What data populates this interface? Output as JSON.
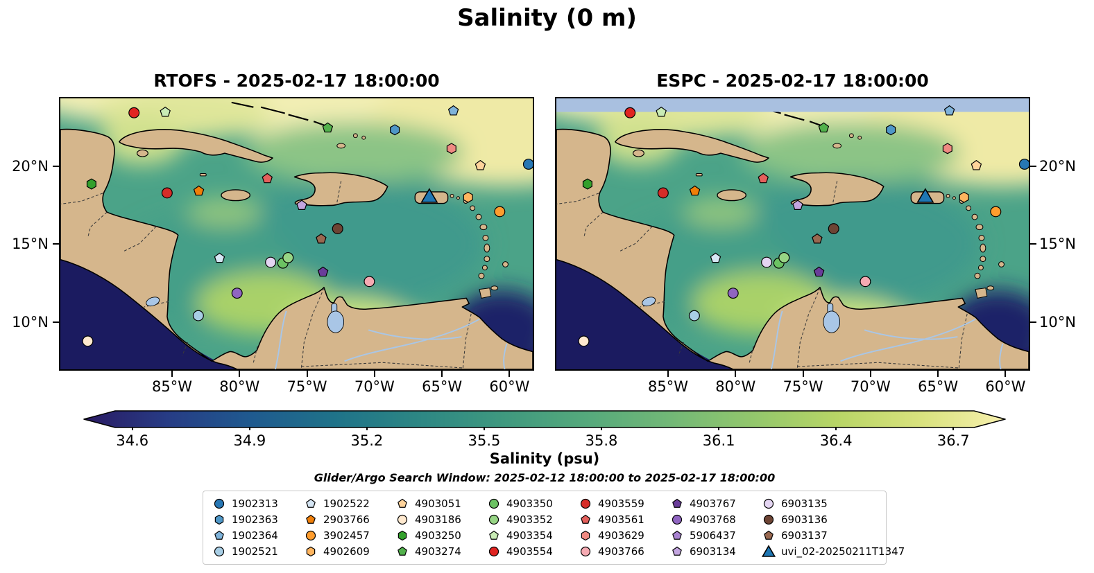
{
  "figure": {
    "title": "Salinity (0 m)",
    "search_window_text": "Glider/Argo Search Window: 2025-02-12 18:00:00 to 2025-02-17 18:00:00"
  },
  "panels": [
    {
      "title": "RTOFS - 2025-02-17 18:00:00"
    },
    {
      "title": "ESPC - 2025-02-17 18:00:00"
    }
  ],
  "axes": {
    "x_ticks": [
      "85°W",
      "80°W",
      "75°W",
      "70°W",
      "65°W",
      "60°W"
    ],
    "y_ticks": [
      "20°N",
      "15°N",
      "10°N"
    ]
  },
  "colorbar": {
    "label": "Salinity (psu)",
    "tick_labels": [
      "34.6",
      "34.9",
      "35.2",
      "35.5",
      "35.8",
      "36.1",
      "36.4",
      "36.7"
    ],
    "colors": [
      "#2a1a63",
      "#273c85",
      "#1f5a8f",
      "#1f7389",
      "#2d8784",
      "#3f997f",
      "#55a97c",
      "#72b877",
      "#93c76c",
      "#b8d566",
      "#d9e27e",
      "#f7f0ae"
    ]
  },
  "map_colors": {
    "land": "#d5b68c",
    "coastline": "#000000",
    "pacific_low_salinity": "#1b1b60",
    "espc_mask": "#a9c0e0",
    "river": "#a9c6e6",
    "sea_base": "#4ba388"
  },
  "chart_data": {
    "type": "heatmap",
    "title": "Salinity (0 m)",
    "variable": "Salinity (psu)",
    "depth_label": "0 m",
    "panels": [
      {
        "model": "RTOFS",
        "valid_time": "2025-02-17 18:00:00"
      },
      {
        "model": "ESPC",
        "valid_time": "2025-02-17 18:00:00"
      }
    ],
    "colorbar": {
      "label": "Salinity (psu)",
      "ticks": [
        34.6,
        34.9,
        35.2,
        35.5,
        35.8,
        36.1,
        36.4,
        36.7
      ],
      "extended_both_ends": true
    },
    "x_tick_lons_degW": [
      85,
      80,
      75,
      70,
      65,
      60
    ],
    "y_tick_lats_degN": [
      20,
      15,
      10
    ],
    "search_window": {
      "start": "2025-02-12 18:00:00",
      "end": "2025-02-17 18:00:00"
    },
    "platforms": [
      {
        "id": "1902313",
        "marker": "circle",
        "color": "#2777b4",
        "pos": {
          "fx": 0.991,
          "fy": 0.243
        }
      },
      {
        "id": "1902363",
        "marker": "hexagon",
        "color": "#4f97c7",
        "pos": {
          "fx": 0.708,
          "fy": 0.116
        }
      },
      {
        "id": "1902364",
        "marker": "pentagon",
        "color": "#7fb3da",
        "pos": {
          "fx": 0.832,
          "fy": 0.046
        }
      },
      {
        "id": "1902521",
        "marker": "circle",
        "color": "#a8cee5",
        "pos": {
          "fx": 0.292,
          "fy": 0.802
        }
      },
      {
        "id": "1902522",
        "marker": "pentagon",
        "color": "#d6e6f4",
        "pos": {
          "fx": 0.337,
          "fy": 0.59
        }
      },
      {
        "id": "2903766",
        "marker": "pentagon",
        "color": "#f07f09",
        "pos": {
          "fx": 0.293,
          "fy": 0.342
        }
      },
      {
        "id": "3902457",
        "marker": "circle",
        "color": "#ff9d2e",
        "pos": {
          "fx": 0.93,
          "fy": 0.418
        }
      },
      {
        "id": "4902609",
        "marker": "hexagon",
        "color": "#ffb55f",
        "pos": {
          "fx": 0.863,
          "fy": 0.365
        }
      },
      {
        "id": "4903051",
        "marker": "pentagon",
        "color": "#ffd39b",
        "pos": {
          "fx": 0.889,
          "fy": 0.248
        }
      },
      {
        "id": "4903186",
        "marker": "circle",
        "color": "#ffe9cf",
        "pos": {
          "fx": 0.058,
          "fy": 0.896
        }
      },
      {
        "id": "4903250",
        "marker": "hexagon",
        "color": "#33a02c",
        "pos": {
          "fx": 0.066,
          "fy": 0.316
        }
      },
      {
        "id": "4903274",
        "marker": "pentagon",
        "color": "#52b14c",
        "pos": {
          "fx": 0.566,
          "fy": 0.109
        }
      },
      {
        "id": "4903350",
        "marker": "circle",
        "color": "#6cc263",
        "pos": {
          "fx": 0.471,
          "fy": 0.608
        }
      },
      {
        "id": "4903352",
        "marker": "circle",
        "color": "#97d585",
        "pos": {
          "fx": 0.482,
          "fy": 0.588
        }
      },
      {
        "id": "4903354",
        "marker": "pentagon",
        "color": "#c9ecb5",
        "pos": {
          "fx": 0.222,
          "fy": 0.051
        }
      },
      {
        "id": "4903554",
        "marker": "circle",
        "color": "#e02421",
        "pos": {
          "fx": 0.156,
          "fy": 0.053
        }
      },
      {
        "id": "4903559",
        "marker": "circle",
        "color": "#d62d28",
        "pos": {
          "fx": 0.226,
          "fy": 0.349
        }
      },
      {
        "id": "4903561",
        "marker": "pentagon",
        "color": "#e4605c",
        "pos": {
          "fx": 0.438,
          "fy": 0.296
        }
      },
      {
        "id": "4903629",
        "marker": "hexagon",
        "color": "#ef8a82",
        "pos": {
          "fx": 0.828,
          "fy": 0.185
        }
      },
      {
        "id": "4903766",
        "marker": "circle",
        "color": "#f5aab2",
        "pos": {
          "fx": 0.654,
          "fy": 0.676
        }
      },
      {
        "id": "4903767",
        "marker": "pentagon",
        "color": "#6a3d9a",
        "pos": {
          "fx": 0.556,
          "fy": 0.641
        }
      },
      {
        "id": "4903768",
        "marker": "circle",
        "color": "#9065c1",
        "pos": {
          "fx": 0.374,
          "fy": 0.719
        }
      },
      {
        "id": "5906437",
        "marker": "pentagon",
        "color": "#a983d1",
        "pos": null
      },
      {
        "id": "6903134",
        "marker": "pentagon",
        "color": "#c3a5e0",
        "pos": {
          "fx": 0.511,
          "fy": 0.395
        }
      },
      {
        "id": "6903135",
        "marker": "circle",
        "color": "#e4d5f2",
        "pos": {
          "fx": 0.445,
          "fy": 0.605
        }
      },
      {
        "id": "6903136",
        "marker": "circle",
        "color": "#6d4434",
        "pos": {
          "fx": 0.587,
          "fy": 0.481
        }
      },
      {
        "id": "6903137",
        "marker": "pentagon",
        "color": "#996850",
        "pos": {
          "fx": 0.552,
          "fy": 0.519
        }
      },
      {
        "id": "uvi_02-20250211T1347",
        "marker": "triangle",
        "color": "#1f77b4",
        "pos": {
          "fx": 0.781,
          "fy": 0.367
        }
      }
    ]
  }
}
